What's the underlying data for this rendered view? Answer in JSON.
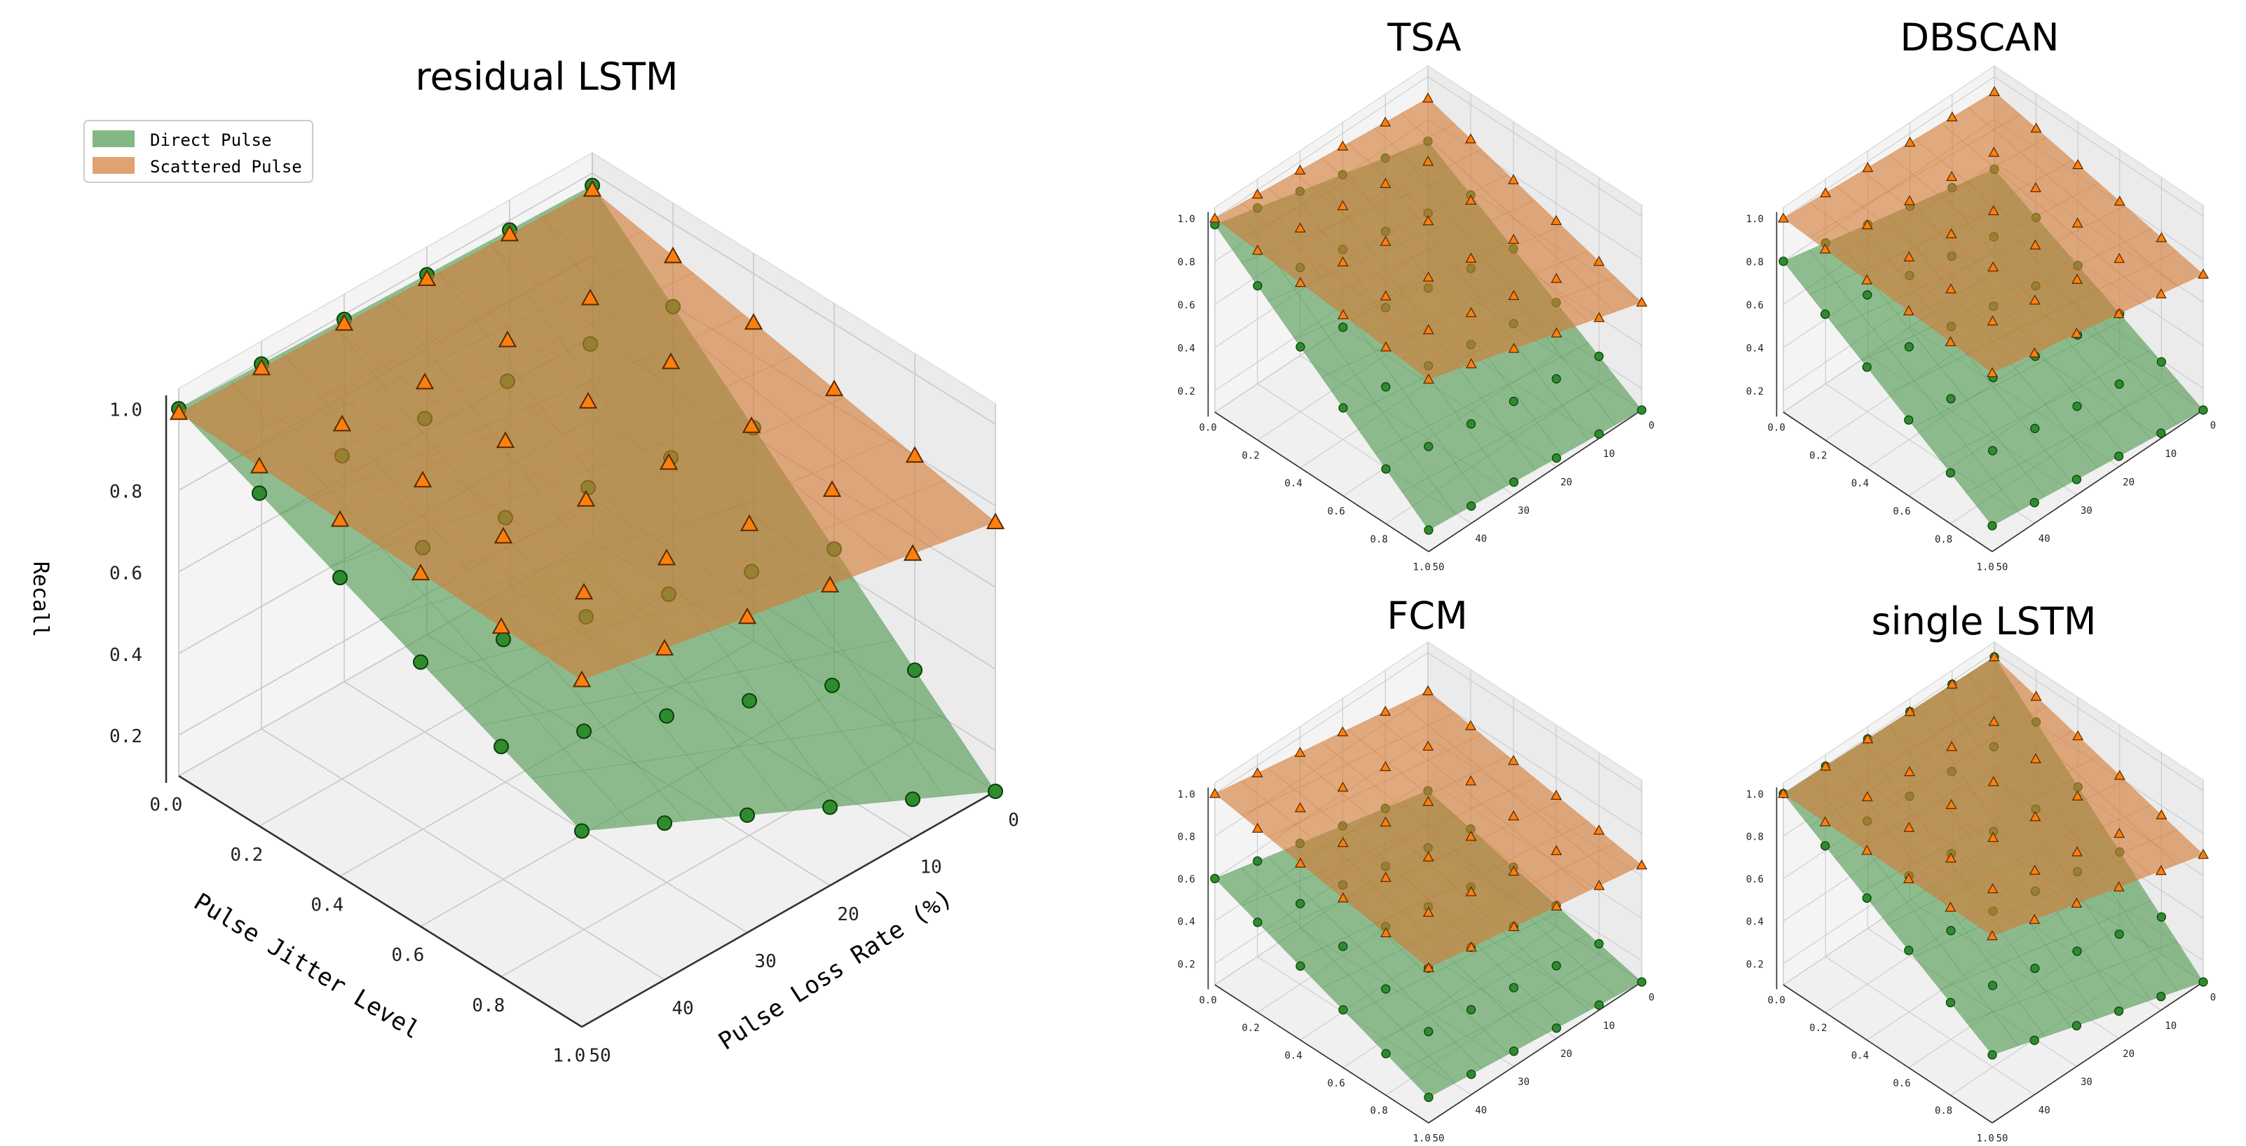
{
  "colors": {
    "direct": "#2e8b2e",
    "direct_surface": "#4f9a50",
    "scattered": "#ff7f0e",
    "scattered_surface": "#d47a35"
  },
  "chart_data": [
    {
      "type": "surface3d",
      "title": "residual LSTM",
      "xlabel": "Pulse Jitter Level",
      "ylabel": "Pulse Loss Rate (%)",
      "zlabel": "Recall",
      "x_ticks": [
        "0.0",
        "0.2",
        "0.4",
        "0.6",
        "0.8",
        "1.0"
      ],
      "y_ticks": [
        "0",
        "10",
        "20",
        "30",
        "40",
        "50"
      ],
      "z_ticks": [
        "0.2",
        "0.4",
        "0.6",
        "0.8",
        "1.0"
      ],
      "legend": [
        "Direct Pulse",
        "Scattered Pulse"
      ],
      "legend_position": "top-left",
      "x": [
        0,
        0.2,
        0.4,
        0.6,
        0.8,
        1.0
      ],
      "y": [
        0,
        10,
        20,
        30,
        40,
        50
      ],
      "zlim": [
        0.1,
        1.05
      ],
      "series": [
        {
          "name": "Direct Pulse",
          "z00": 0.97,
          "z10": 0.1,
          "z01": 1.0,
          "z11": 0.58
        },
        {
          "name": "Scattered Pulse",
          "z00": 0.96,
          "z10": 0.76,
          "z01": 0.99,
          "z11": 0.95
        }
      ]
    },
    {
      "type": "surface3d",
      "title": "TSA",
      "x_ticks": [
        "0.0",
        "0.2",
        "0.4",
        "0.6",
        "0.8",
        "1.0"
      ],
      "y_ticks": [
        "0",
        "10",
        "20",
        "30",
        "40",
        "50"
      ],
      "z_ticks": [
        "0.2",
        "0.4",
        "0.6",
        "0.8",
        "1.0"
      ],
      "x": [
        0,
        0.2,
        0.4,
        0.6,
        0.8,
        1.0
      ],
      "y": [
        0,
        10,
        20,
        30,
        40,
        50
      ],
      "zlim": [
        0.1,
        1.05
      ],
      "series": [
        {
          "name": "Direct Pulse",
          "z00": 0.7,
          "z10": 0.1,
          "z01": 0.97,
          "z11": 0.2
        },
        {
          "name": "Scattered Pulse",
          "z00": 0.9,
          "z10": 0.6,
          "z01": 1.0,
          "z11": 0.9
        }
      ]
    },
    {
      "type": "surface3d",
      "title": "DBSCAN",
      "x_ticks": [
        "0.0",
        "0.2",
        "0.4",
        "0.6",
        "0.8",
        "1.0"
      ],
      "y_ticks": [
        "0",
        "10",
        "20",
        "30",
        "40",
        "50"
      ],
      "z_ticks": [
        "0.2",
        "0.4",
        "0.6",
        "0.8",
        "1.0"
      ],
      "x": [
        0,
        0.2,
        0.4,
        0.6,
        0.8,
        1.0
      ],
      "y": [
        0,
        10,
        20,
        30,
        40,
        50
      ],
      "zlim": [
        0.1,
        1.05
      ],
      "series": [
        {
          "name": "Direct Pulse",
          "z00": 0.57,
          "z10": 0.1,
          "z01": 0.8,
          "z11": 0.22
        },
        {
          "name": "Scattered Pulse",
          "z00": 0.93,
          "z10": 0.73,
          "z01": 1.0,
          "z11": 0.93
        }
      ]
    },
    {
      "type": "surface3d",
      "title": "FCM",
      "x_ticks": [
        "0.0",
        "0.2",
        "0.4",
        "0.6",
        "0.8",
        "1.0"
      ],
      "y_ticks": [
        "0",
        "10",
        "20",
        "30",
        "40",
        "50"
      ],
      "z_ticks": [
        "0.2",
        "0.4",
        "0.6",
        "0.8",
        "1.0"
      ],
      "x": [
        0,
        0.2,
        0.4,
        0.6,
        0.8,
        1.0
      ],
      "y": [
        0,
        10,
        20,
        30,
        40,
        50
      ],
      "zlim": [
        0.1,
        1.05
      ],
      "series": [
        {
          "name": "Direct Pulse",
          "z00": 0.35,
          "z10": 0.1,
          "z01": 0.6,
          "z11": 0.22
        },
        {
          "name": "Scattered Pulse",
          "z00": 0.82,
          "z10": 0.65,
          "z01": 1.0,
          "z11": 0.83
        }
      ]
    },
    {
      "type": "surface3d",
      "title": "single LSTM",
      "x_ticks": [
        "0.0",
        "0.2",
        "0.4",
        "0.6",
        "0.8",
        "1.0"
      ],
      "y_ticks": [
        "0",
        "10",
        "20",
        "30",
        "40",
        "50"
      ],
      "z_ticks": [
        "0.2",
        "0.4",
        "0.6",
        "0.8",
        "1.0"
      ],
      "x": [
        0,
        0.2,
        0.4,
        0.6,
        0.8,
        1.0
      ],
      "y": [
        0,
        10,
        20,
        30,
        40,
        50
      ],
      "zlim": [
        0.1,
        1.05
      ],
      "series": [
        {
          "name": "Direct Pulse",
          "z00": 0.98,
          "z10": 0.1,
          "z01": 1.0,
          "z11": 0.42
        },
        {
          "name": "Scattered Pulse",
          "z00": 0.98,
          "z10": 0.7,
          "z01": 1.0,
          "z11": 0.98
        }
      ]
    }
  ]
}
